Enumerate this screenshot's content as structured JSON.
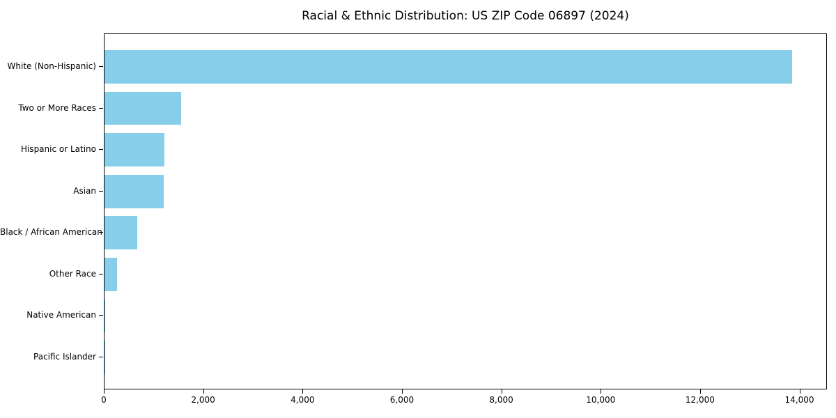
{
  "chart_data": {
    "type": "bar",
    "orientation": "horizontal",
    "title": "Racial & Ethnic Distribution: US ZIP Code 06897 (2024)",
    "xlabel": "",
    "ylabel": "",
    "categories": [
      "White (Non-Hispanic)",
      "Two or More Races",
      "Hispanic or Latino",
      "Asian",
      "Black / African American",
      "Other Race",
      "Native American",
      "Pacific Islander"
    ],
    "values": [
      13860,
      1550,
      1210,
      1190,
      660,
      250,
      15,
      3
    ],
    "xlim": [
      0,
      14553
    ],
    "x_ticks": [
      0,
      2000,
      4000,
      6000,
      8000,
      10000,
      12000,
      14000
    ],
    "x_tick_labels": [
      "0",
      "2,000",
      "4,000",
      "6,000",
      "8,000",
      "10,000",
      "12,000",
      "14,000"
    ],
    "bar_color": "#87CEEB",
    "axis_color": "#000000",
    "grid": false,
    "legend": null
  }
}
